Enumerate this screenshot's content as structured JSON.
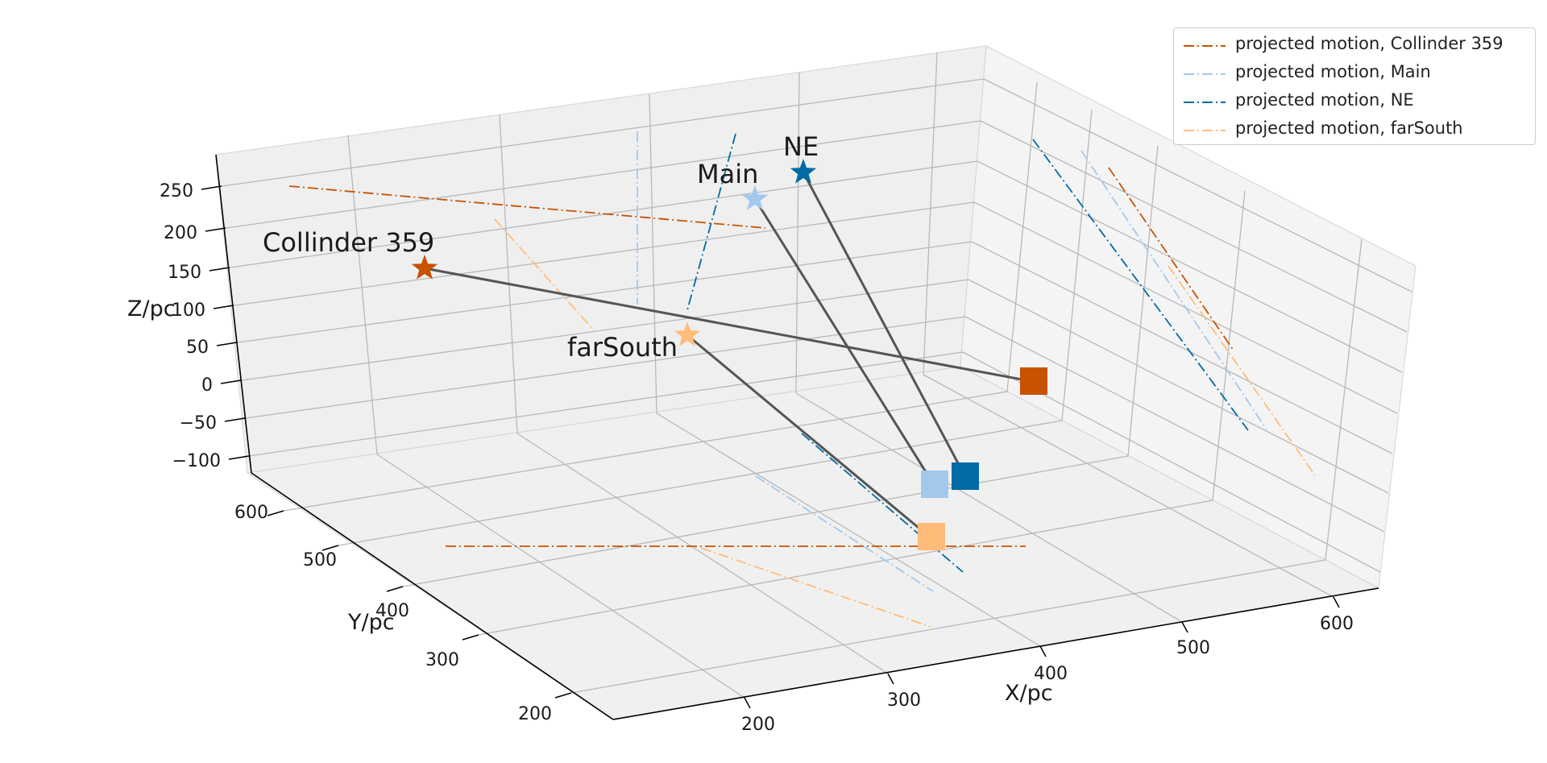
{
  "chart_data": {
    "type": "scatter3d",
    "xlabel": "X/pc",
    "ylabel": "Y/pc",
    "zlabel": "Z/pc",
    "x_ticks": [
      200,
      300,
      400,
      500,
      600
    ],
    "y_ticks": [
      200,
      300,
      400,
      500,
      600
    ],
    "z_ticks": [
      -100,
      -50,
      0,
      50,
      100,
      150,
      200,
      250
    ],
    "x_tick_labels": [
      "200",
      "300",
      "400",
      "500",
      "600"
    ],
    "y_tick_labels": [
      "200",
      "300",
      "400",
      "500",
      "600"
    ],
    "z_tick_labels": [
      "−100",
      "−50",
      "0",
      "50",
      "100",
      "150",
      "200",
      "250"
    ],
    "xlim": [
      130,
      650
    ],
    "ylim": [
      150,
      650
    ],
    "zlim": [
      -130,
      300
    ],
    "groups": [
      {
        "name": "Collinder 359",
        "color": "#c85200",
        "star": [
          115,
          295,
          140
        ],
        "square": [
          480,
          370,
          -20
        ]
      },
      {
        "name": "Main",
        "color": "#a3c8ec",
        "star": [
          280,
          440,
          225
        ],
        "square": [
          330,
          290,
          -20
        ]
      },
      {
        "name": "NE",
        "color": "#006ba4",
        "star": [
          300,
          460,
          270
        ],
        "square": [
          360,
          285,
          -20
        ]
      },
      {
        "name": "farSouth",
        "color": "#ffbc79",
        "star": [
          200,
          310,
          60
        ],
        "square": [
          320,
          240,
          -20
        ]
      }
    ],
    "legend": {
      "position": "top-right",
      "entries": [
        {
          "label": "projected motion, Collinder 359",
          "color": "#c85200"
        },
        {
          "label": "projected motion, Main",
          "color": "#a3c8ec"
        },
        {
          "label": "projected motion, NE",
          "color": "#006ba4"
        },
        {
          "label": "projected motion, farSouth",
          "color": "#ffbc79"
        }
      ]
    },
    "grid": true
  }
}
